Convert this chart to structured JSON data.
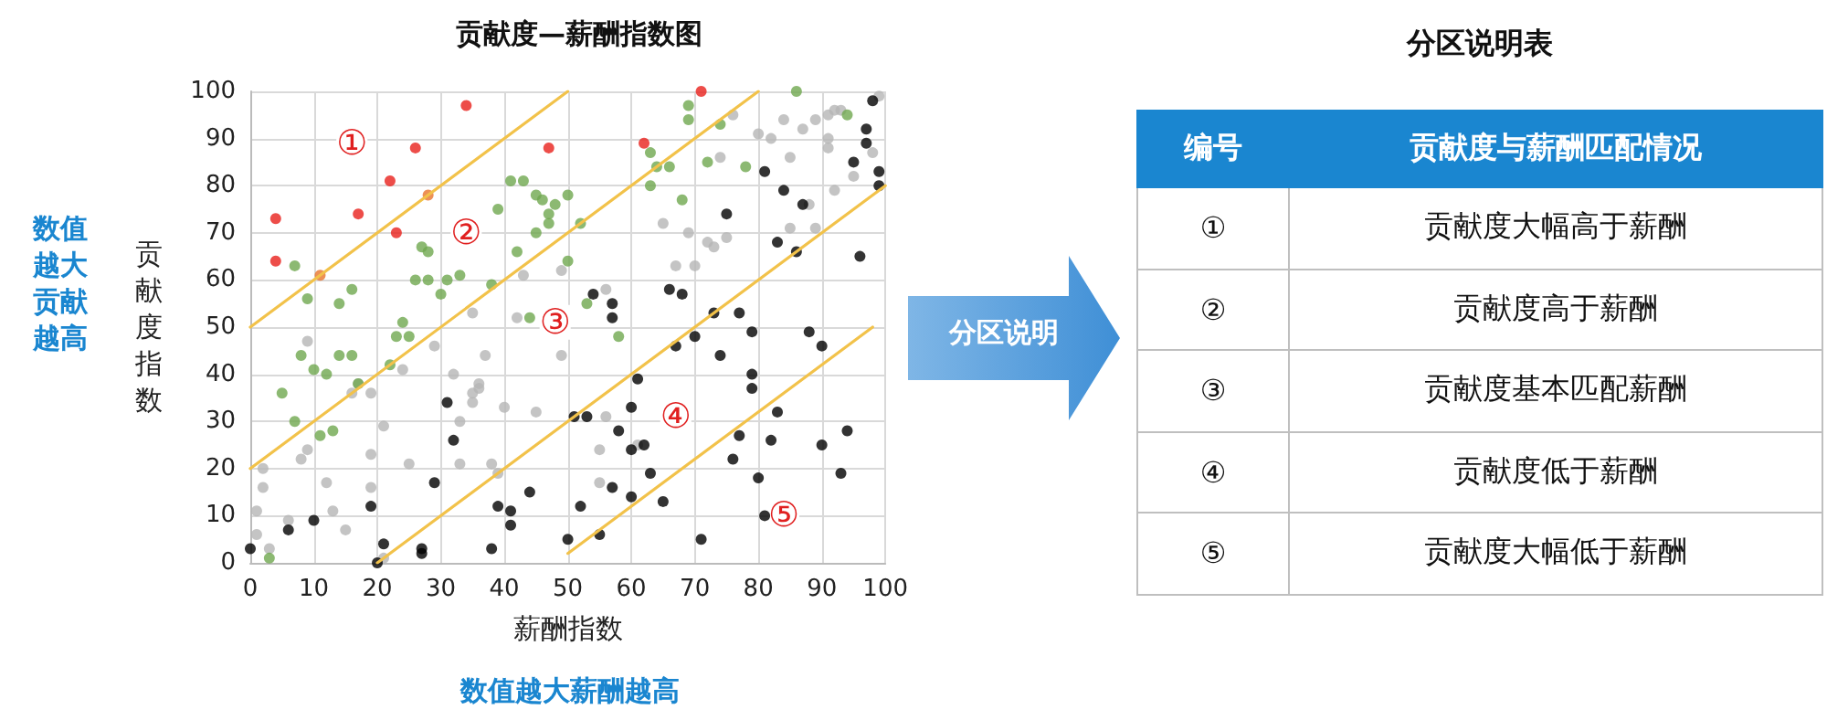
{
  "chart_data": [
    {
      "type": "scatter",
      "title": "贡献度—薪酬指数图",
      "xlabel": "薪酬指数",
      "ylabel": "贡献度指数",
      "xlim": [
        0,
        100
      ],
      "ylim": [
        0,
        100
      ],
      "xticks": [
        0,
        10,
        20,
        30,
        40,
        50,
        60,
        70,
        80,
        90,
        100
      ],
      "yticks": [
        0,
        10,
        20,
        30,
        40,
        50,
        60,
        70,
        80,
        90,
        100
      ],
      "grid": true,
      "marker": "circle",
      "annotations": [
        "数值越大贡献越高",
        "数值越大薪酬越高",
        {
          "text": "①",
          "x": 16,
          "y": 89
        },
        {
          "text": "②",
          "x": 34,
          "y": 70
        },
        {
          "text": "③",
          "x": 48,
          "y": 51
        },
        {
          "text": "④",
          "x": 67,
          "y": 31
        },
        {
          "text": "⑤",
          "x": 84,
          "y": 10
        }
      ],
      "series": [
        {
          "type": "line",
          "marker": "none",
          "color": "#f2c24a",
          "x": [
            0,
            50
          ],
          "values": [
            50,
            100
          ]
        },
        {
          "type": "line",
          "marker": "none",
          "color": "#f2c24a",
          "x": [
            0,
            80
          ],
          "values": [
            20,
            100
          ]
        },
        {
          "type": "line",
          "marker": "none",
          "color": "#f2c24a",
          "x": [
            20,
            100
          ],
          "values": [
            0,
            80
          ]
        },
        {
          "type": "line",
          "marker": "none",
          "color": "#f2c24a",
          "x": [
            50,
            98
          ],
          "values": [
            2,
            50
          ]
        },
        {
          "color": "#b5b5b5",
          "x": [
            43,
            49,
            35,
            42,
            76,
            84,
            80,
            82,
            87,
            89,
            91,
            93,
            92,
            99,
            74,
            85,
            91,
            91,
            98,
            92,
            95,
            65,
            69,
            72,
            73,
            75,
            67,
            70,
            85,
            88,
            89,
            56,
            9,
            17,
            16,
            19,
            24,
            29,
            37,
            32,
            36,
            36,
            35,
            35,
            40,
            45,
            33,
            21,
            8,
            9,
            2,
            2,
            19,
            25,
            33,
            12,
            19,
            1,
            13,
            6,
            15,
            1,
            3,
            21,
            38,
            39,
            49,
            56,
            55,
            55,
            61
          ],
          "values": [
            61,
            62,
            53,
            52,
            95,
            94,
            91,
            90,
            92,
            94,
            95,
            96,
            96,
            99,
            86,
            86,
            90,
            88,
            87,
            79,
            82,
            72,
            70,
            68,
            67,
            69,
            63,
            63,
            71,
            76,
            71,
            58,
            47,
            38,
            36,
            36,
            41,
            46,
            44,
            40,
            38,
            37,
            36,
            34,
            33,
            32,
            30,
            29,
            22,
            24,
            20,
            16,
            23,
            21,
            21,
            17,
            16,
            11,
            11,
            9,
            7,
            6,
            3,
            1,
            21,
            19,
            44,
            31,
            24,
            17,
            25
          ]
        },
        {
          "color": "#6fa84f",
          "x": [
            41,
            43,
            45,
            46,
            48,
            50,
            39,
            47,
            47,
            45,
            28,
            27,
            42,
            7,
            26,
            28,
            31,
            33,
            16,
            14,
            9,
            38,
            30,
            24,
            44,
            69,
            69,
            86,
            74,
            63,
            64,
            66,
            63,
            72,
            78,
            68,
            94,
            52,
            50,
            53,
            23,
            25,
            8,
            14,
            16,
            10,
            12,
            22,
            17,
            5,
            7,
            11,
            13,
            3,
            58
          ],
          "values": [
            81,
            81,
            78,
            77,
            76,
            78,
            75,
            74,
            72,
            70,
            66,
            67,
            66,
            63,
            60,
            60,
            60,
            61,
            58,
            55,
            56,
            59,
            57,
            51,
            52,
            97,
            94,
            100,
            93,
            87,
            84,
            84,
            80,
            85,
            84,
            77,
            95,
            72,
            64,
            55,
            48,
            48,
            44,
            44,
            44,
            41,
            40,
            42,
            38,
            36,
            30,
            27,
            28,
            1,
            48
          ]
        },
        {
          "color": "#000000",
          "x": [
            98,
            97,
            97,
            95,
            99,
            99,
            81,
            84,
            87,
            75,
            83,
            86,
            96,
            66,
            68,
            54,
            57,
            57,
            31,
            32,
            29,
            19,
            10,
            6,
            0,
            21,
            20,
            27,
            27,
            38,
            39,
            41,
            41,
            44,
            67,
            70,
            73,
            77,
            79,
            74,
            88,
            90,
            79,
            79,
            61,
            60,
            51,
            53,
            58,
            60,
            62,
            83,
            77,
            82,
            90,
            94,
            76,
            80,
            93,
            63,
            57,
            60,
            65,
            52,
            50,
            55,
            71,
            81
          ],
          "values": [
            98,
            92,
            89,
            85,
            83,
            80,
            83,
            79,
            76,
            74,
            68,
            66,
            65,
            58,
            57,
            57,
            55,
            52,
            34,
            26,
            17,
            12,
            9,
            7,
            3,
            4,
            0,
            3,
            2,
            3,
            12,
            11,
            8,
            15,
            46,
            48,
            53,
            53,
            49,
            44,
            49,
            46,
            40,
            37,
            39,
            33,
            31,
            31,
            28,
            24,
            25,
            32,
            27,
            26,
            25,
            28,
            22,
            18,
            19,
            19,
            16,
            14,
            13,
            12,
            5,
            6,
            5,
            10
          ]
        },
        {
          "color": "#e8201c",
          "x": [
            34,
            26,
            47,
            22,
            4,
            17,
            23,
            4,
            71,
            62
          ],
          "values": [
            97,
            88,
            88,
            81,
            73,
            74,
            70,
            64,
            100,
            89
          ]
        },
        {
          "color": "#e8742c",
          "x": [
            28,
            11
          ],
          "values": [
            78,
            61
          ]
        }
      ]
    },
    {
      "type": "other",
      "title": "分区说明表",
      "annotations": [
        "分区说明",
        "编号",
        "贡献度与薪酬匹配情况",
        "①",
        "贡献度大幅高于薪酬",
        "②",
        "贡献度高于薪酬",
        "③",
        "贡献度基本匹配薪酬",
        "④",
        "贡献度低于薪酬",
        "⑤",
        "贡献度大幅低于薪酬"
      ]
    }
  ]
}
